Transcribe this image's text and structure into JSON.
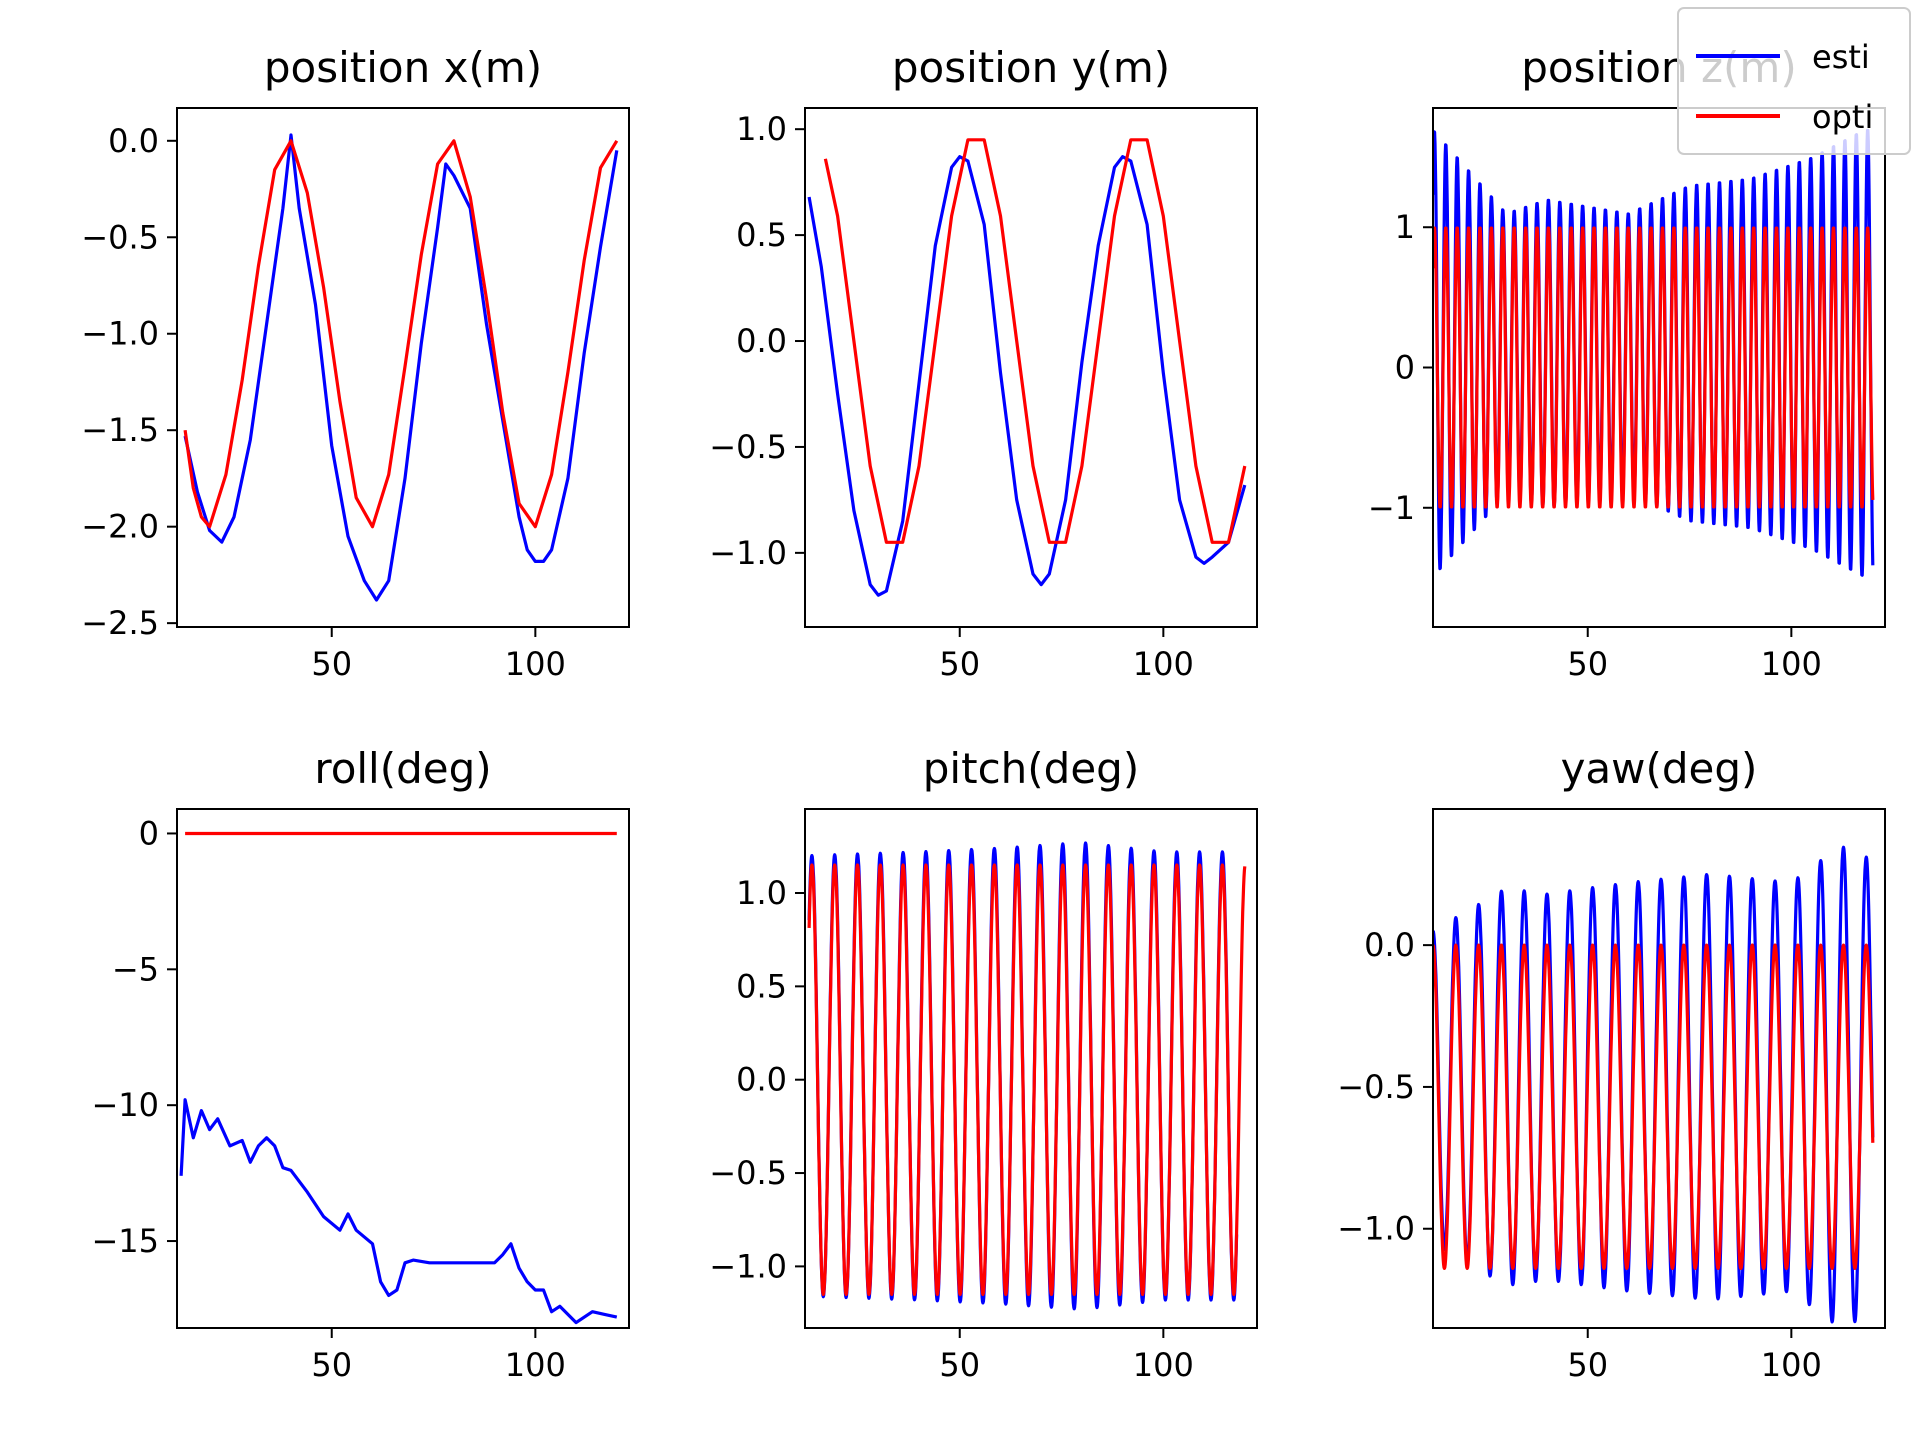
{
  "chart_data": [
    {
      "type": "line",
      "title": "position x(m)",
      "xlim": [
        12,
        123
      ],
      "ylim": [
        -2.52,
        0.17
      ],
      "xticks": [
        50,
        100
      ],
      "yticks": [
        0.0,
        -0.5,
        -1.0,
        -1.5,
        -2.0,
        -2.5
      ],
      "ytick_labels": [
        "0.0",
        "−0.5",
        "−1.0",
        "−1.5",
        "−2.0",
        "−2.5"
      ],
      "series": [
        {
          "name": "esti",
          "color": "#0000ff",
          "x": [
            14,
            17,
            20,
            23,
            26,
            30,
            34,
            38,
            40,
            42,
            46,
            50,
            54,
            58,
            61,
            64,
            68,
            72,
            76,
            78,
            80,
            84,
            88,
            92,
            96,
            98,
            100,
            102,
            104,
            108,
            112,
            116,
            120
          ],
          "y": [
            -1.53,
            -1.82,
            -2.02,
            -2.08,
            -1.95,
            -1.55,
            -0.95,
            -0.35,
            0.03,
            -0.35,
            -0.85,
            -1.58,
            -2.05,
            -2.28,
            -2.38,
            -2.28,
            -1.75,
            -1.05,
            -0.45,
            -0.12,
            -0.18,
            -0.35,
            -0.95,
            -1.45,
            -1.95,
            -2.12,
            -2.18,
            -2.18,
            -2.12,
            -1.75,
            -1.1,
            -0.55,
            -0.05
          ]
        },
        {
          "name": "opti",
          "color": "#ff0000",
          "x": [
            14,
            16,
            18,
            20,
            24,
            28,
            32,
            36,
            40,
            44,
            48,
            52,
            56,
            60,
            64,
            68,
            72,
            76,
            80,
            84,
            88,
            92,
            96,
            100,
            104,
            108,
            112,
            116,
            120
          ],
          "y": [
            -1.5,
            -1.8,
            -1.95,
            -2.0,
            -1.73,
            -1.24,
            -0.65,
            -0.15,
            0.0,
            -0.27,
            -0.76,
            -1.35,
            -1.85,
            -2.0,
            -1.73,
            -1.17,
            -0.59,
            -0.12,
            0.0,
            -0.29,
            -0.82,
            -1.41,
            -1.88,
            -2.0,
            -1.73,
            -1.2,
            -0.62,
            -0.14,
            0.0
          ]
        }
      ]
    },
    {
      "type": "line",
      "title": "position y(m)",
      "xlim": [
        12,
        123
      ],
      "ylim": [
        -1.35,
        1.1
      ],
      "xticks": [
        50,
        100
      ],
      "yticks": [
        1.0,
        0.5,
        0.0,
        -0.5,
        -1.0
      ],
      "ytick_labels": [
        "1.0",
        "0.5",
        "0.0",
        "−0.5",
        "−1.0"
      ],
      "series": [
        {
          "name": "esti",
          "color": "#0000ff",
          "x": [
            13,
            16,
            20,
            24,
            28,
            30,
            32,
            36,
            40,
            44,
            48,
            50,
            52,
            56,
            60,
            64,
            68,
            70,
            72,
            76,
            80,
            84,
            88,
            90,
            92,
            96,
            100,
            104,
            108,
            110,
            112,
            116,
            120
          ],
          "y": [
            0.68,
            0.35,
            -0.25,
            -0.8,
            -1.15,
            -1.2,
            -1.18,
            -0.85,
            -0.2,
            0.45,
            0.82,
            0.87,
            0.85,
            0.55,
            -0.15,
            -0.75,
            -1.1,
            -1.15,
            -1.1,
            -0.75,
            -0.1,
            0.45,
            0.82,
            0.87,
            0.85,
            0.55,
            -0.15,
            -0.75,
            -1.02,
            -1.05,
            -1.02,
            -0.95,
            -0.68
          ]
        },
        {
          "name": "opti",
          "color": "#ff0000",
          "x": [
            17,
            20,
            24,
            28,
            32,
            36,
            40,
            44,
            48,
            52,
            56,
            60,
            64,
            68,
            72,
            76,
            80,
            84,
            88,
            92,
            96,
            100,
            104,
            108,
            112,
            116,
            120
          ],
          "y": [
            0.86,
            0.59,
            0.0,
            -0.59,
            -0.95,
            -0.95,
            -0.59,
            0.0,
            0.59,
            0.95,
            0.95,
            0.59,
            0.0,
            -0.59,
            -0.95,
            -0.95,
            -0.59,
            0.0,
            0.59,
            0.95,
            0.95,
            0.59,
            0.0,
            -0.59,
            -0.95,
            -0.95,
            -0.59
          ]
        }
      ]
    },
    {
      "type": "line",
      "title": "position z(m)",
      "xlim": [
        12,
        123
      ],
      "ylim": [
        -1.85,
        1.85
      ],
      "xticks": [
        50,
        100
      ],
      "yticks": [
        1,
        0,
        -1
      ],
      "ytick_labels": [
        "1",
        "0",
        "−1"
      ],
      "series": [
        {
          "name": "esti",
          "color": "#0000ff",
          "period": 2.8,
          "offset": 0.1,
          "x_start": 12,
          "x_end": 120,
          "amp_keys": [
            [
              12,
              1.6
            ],
            [
              30,
              1.0
            ],
            [
              40,
              1.1
            ],
            [
              60,
              1.0
            ],
            [
              75,
              1.2
            ],
            [
              90,
              1.25
            ],
            [
              105,
              1.4
            ],
            [
              118,
              1.6
            ]
          ]
        },
        {
          "name": "opti",
          "color": "#ff0000",
          "period": 2.8,
          "offset": 0.0,
          "x_start": 12,
          "x_end": 120,
          "amp_keys": [
            [
              12,
              1.0
            ],
            [
              120,
              1.0
            ]
          ]
        }
      ]
    },
    {
      "type": "line",
      "title": "roll(deg)",
      "xlim": [
        12,
        123
      ],
      "ylim": [
        -18.2,
        0.9
      ],
      "xticks": [
        50,
        100
      ],
      "yticks": [
        0,
        -5,
        -10,
        -15
      ],
      "ytick_labels": [
        "0",
        "−5",
        "−10",
        "−15"
      ],
      "series": [
        {
          "name": "esti",
          "color": "#0000ff",
          "x": [
            13,
            14,
            16,
            18,
            20,
            22,
            25,
            28,
            30,
            32,
            34,
            36,
            38,
            40,
            44,
            48,
            52,
            54,
            56,
            60,
            62,
            64,
            66,
            68,
            70,
            74,
            80,
            86,
            90,
            92,
            94,
            96,
            98,
            100,
            102,
            104,
            106,
            110,
            114,
            117,
            120
          ],
          "y": [
            -12.6,
            -9.8,
            -11.2,
            -10.2,
            -10.9,
            -10.5,
            -11.5,
            -11.3,
            -12.1,
            -11.5,
            -11.2,
            -11.5,
            -12.3,
            -12.4,
            -13.2,
            -14.1,
            -14.6,
            -14.0,
            -14.6,
            -15.1,
            -16.5,
            -17.0,
            -16.8,
            -15.8,
            -15.7,
            -15.8,
            -15.8,
            -15.8,
            -15.8,
            -15.5,
            -15.1,
            -16.0,
            -16.5,
            -16.8,
            -16.8,
            -17.6,
            -17.4,
            -18.0,
            -17.6,
            -17.7,
            -17.8
          ]
        },
        {
          "name": "opti",
          "color": "#ff0000",
          "x": [
            14,
            120
          ],
          "y": [
            0.0,
            0.0
          ]
        }
      ]
    },
    {
      "type": "line",
      "title": "pitch(deg)",
      "xlim": [
        12,
        123
      ],
      "ylim": [
        -1.33,
        1.45
      ],
      "xticks": [
        50,
        100
      ],
      "yticks": [
        1.0,
        0.5,
        0.0,
        -0.5,
        -1.0
      ],
      "ytick_labels": [
        "1.0",
        "0.5",
        "0.0",
        "−0.5",
        "−1.0"
      ],
      "series": [
        {
          "name": "esti",
          "color": "#0000ff",
          "period": 5.6,
          "offset": 0.02,
          "x_start": 13,
          "x_end": 118,
          "amp_keys": [
            [
              13,
              1.18
            ],
            [
              40,
              1.2
            ],
            [
              60,
              1.22
            ],
            [
              80,
              1.25
            ],
            [
              100,
              1.2
            ],
            [
              118,
              1.2
            ]
          ]
        },
        {
          "name": "opti",
          "color": "#ff0000",
          "period": 5.6,
          "offset": 0.0,
          "x_start": 13,
          "x_end": 120,
          "amp_keys": [
            [
              13,
              1.15
            ],
            [
              120,
              1.15
            ]
          ]
        }
      ]
    },
    {
      "type": "line",
      "title": "yaw(deg)",
      "xlim": [
        12,
        123
      ],
      "ylim": [
        -1.35,
        0.48
      ],
      "xticks": [
        50,
        100
      ],
      "yticks": [
        0.0,
        -0.5,
        -1.0
      ],
      "ytick_labels": [
        "0.0",
        "−0.5",
        "−1.0"
      ],
      "series": [
        {
          "name": "esti",
          "color": "#0000ff",
          "period": 5.6,
          "center": -0.5,
          "x_start": 12,
          "x_end": 120,
          "amp_keys": [
            [
              12,
              0.55
            ],
            [
              30,
              0.7
            ],
            [
              40,
              0.68
            ],
            [
              60,
              0.72
            ],
            [
              80,
              0.75
            ],
            [
              100,
              0.72
            ],
            [
              112,
              0.85
            ],
            [
              120,
              0.8
            ]
          ]
        },
        {
          "name": "opti",
          "color": "#ff0000",
          "period": 5.6,
          "center": -0.57,
          "x_start": 12,
          "x_end": 120,
          "amp_keys": [
            [
              12,
              0.57
            ],
            [
              120,
              0.57
            ]
          ]
        }
      ]
    }
  ],
  "legend": {
    "placement": "top-right",
    "entries": [
      {
        "label": "esti",
        "color": "#0000ff"
      },
      {
        "label": "opti",
        "color": "#ff0000"
      }
    ]
  }
}
